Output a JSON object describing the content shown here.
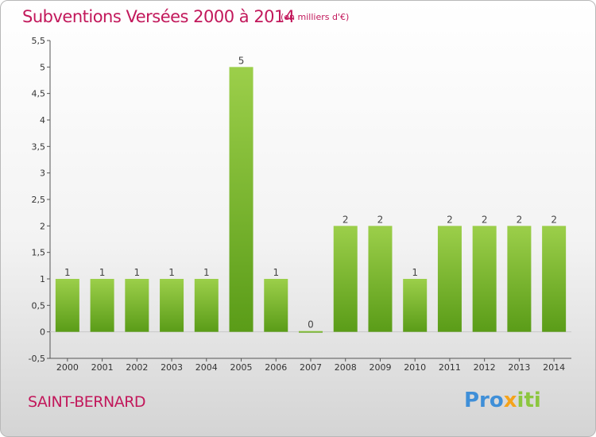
{
  "header": {
    "title": "Subventions Versées 2000 à 2014",
    "subtitle": "(en milliers d'€)"
  },
  "footer": {
    "commune": "SAINT-BERNARD",
    "brand": {
      "part1": "Pro",
      "part2": "x",
      "part3": "iti"
    }
  },
  "colors": {
    "title": "#c2185b",
    "bar_top": "#9ccf4a",
    "bar_bottom": "#5a9c18",
    "axis": "#555555",
    "grid": "#d9d9d9"
  },
  "chart_data": {
    "type": "bar",
    "title": "Subventions Versées 2000 à 2014",
    "subtitle": "(en milliers d'€)",
    "xlabel": "",
    "ylabel": "",
    "categories": [
      "2000",
      "2001",
      "2002",
      "2003",
      "2004",
      "2005",
      "2006",
      "2007",
      "2008",
      "2009",
      "2010",
      "2011",
      "2012",
      "2013",
      "2014"
    ],
    "values": [
      1,
      1,
      1,
      1,
      1,
      5,
      1,
      0,
      2,
      2,
      1,
      2,
      2,
      2,
      2
    ],
    "ylim": [
      -0.5,
      5.5
    ],
    "yticks": [
      "-0,5",
      "0",
      "0,5",
      "1",
      "1,5",
      "2",
      "2,5",
      "3",
      "3,5",
      "4",
      "4,5",
      "5",
      "5,5"
    ],
    "ytick_values": [
      -0.5,
      0,
      0.5,
      1,
      1.5,
      2,
      2.5,
      3,
      3.5,
      4,
      4.5,
      5,
      5.5
    ],
    "data_labels": [
      "1",
      "1",
      "1",
      "1",
      "1",
      "5",
      "1",
      "0",
      "2",
      "2",
      "1",
      "2",
      "2",
      "2",
      "2"
    ],
    "grid": false,
    "legend": "none"
  }
}
